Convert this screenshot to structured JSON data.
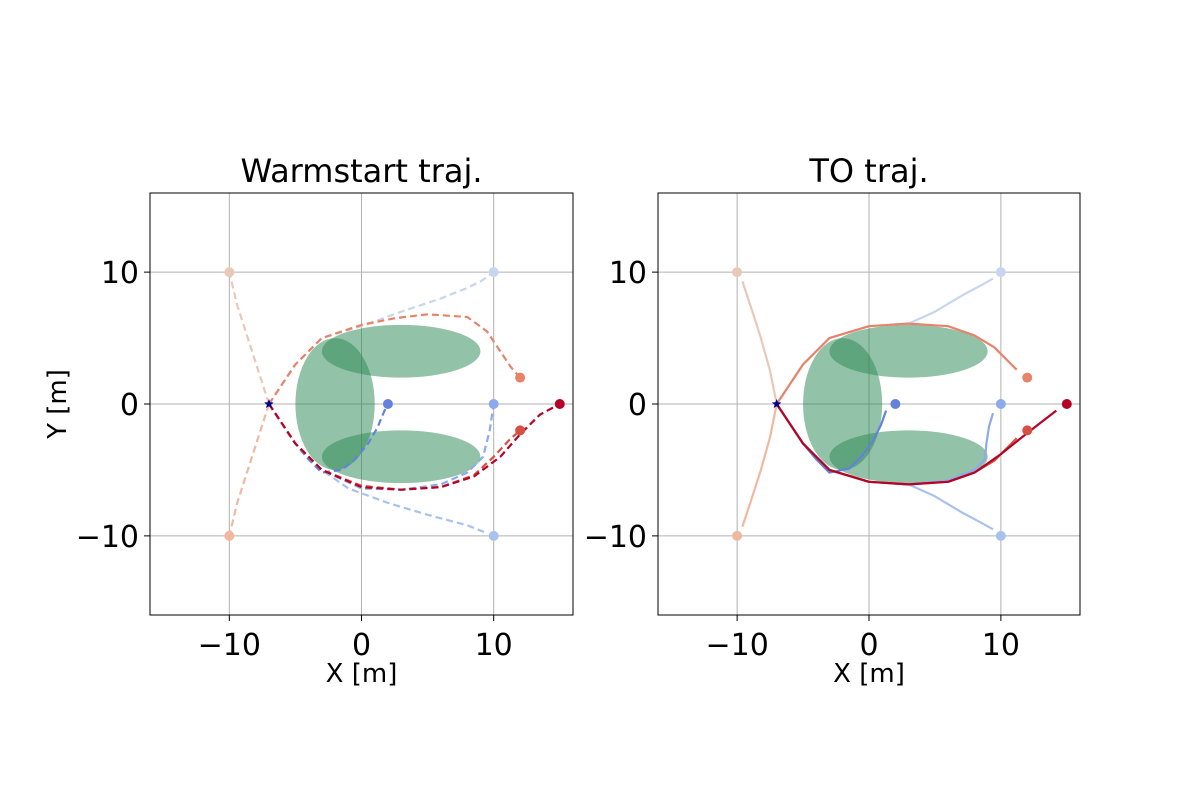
{
  "chart_data": [
    {
      "type": "line",
      "title": "Warmstart traj.",
      "xlabel": "X [m]",
      "ylabel": "Y [m]",
      "xlim": [
        -16,
        16
      ],
      "ylim": [
        -16,
        16
      ],
      "xticks": [
        -10,
        0,
        10
      ],
      "yticks": [
        -10,
        0,
        10
      ],
      "xtick_labels": [
        "−10",
        "0",
        "10"
      ],
      "ytick_labels": [
        "−10",
        "0",
        "10"
      ],
      "grid": true,
      "line_style": "dashed",
      "obstacles": [
        {
          "shape": "ellipse",
          "center": [
            3,
            4
          ],
          "rx": 6,
          "ry": 2,
          "color": "#2e8b57"
        },
        {
          "shape": "ellipse",
          "center": [
            3,
            -4
          ],
          "rx": 6,
          "ry": 2,
          "color": "#2e8b57"
        },
        {
          "shape": "ellipse",
          "center": [
            -2,
            0
          ],
          "rx": 3,
          "ry": 5,
          "color": "#2e8b57"
        }
      ],
      "start": {
        "x": -7,
        "y": 0,
        "color": "#00008b"
      },
      "series": [
        {
          "color": "#e8c8b8",
          "goal": [
            -10,
            10
          ],
          "x": [
            -7,
            -7.8,
            -8.6,
            -9.4,
            -10
          ],
          "y": [
            0,
            2.5,
            5,
            7.5,
            10
          ]
        },
        {
          "color": "#f0b8a0",
          "goal": [
            -10,
            -10
          ],
          "x": [
            -7,
            -7.8,
            -8.6,
            -9.4,
            -10
          ],
          "y": [
            0,
            -2.5,
            -5,
            -7.5,
            -10
          ]
        },
        {
          "color": "#c6d6ef",
          "goal": [
            10,
            10
          ],
          "x": [
            -7,
            -6,
            -5,
            -3,
            0,
            3,
            6,
            8,
            9,
            9.6,
            10
          ],
          "y": [
            0,
            1.5,
            3,
            5,
            5.9,
            7,
            8,
            8.8,
            9.3,
            9.7,
            10
          ]
        },
        {
          "color": "#a8c2ee",
          "goal": [
            10,
            -10
          ],
          "x": [
            -7,
            -6,
            -5,
            -3,
            -1,
            2,
            5,
            8,
            9.5
          ],
          "y": [
            0,
            -1.5,
            -3,
            -5,
            -6.4,
            -7.5,
            -8.4,
            -9.2,
            -9.8
          ]
        },
        {
          "color": "#8caaec",
          "goal": [
            10,
            0
          ],
          "x": [
            -7,
            -6,
            -5,
            -3,
            0,
            3,
            6,
            8,
            9.2,
            9.7,
            10
          ],
          "y": [
            0,
            -1.5,
            -3,
            -5,
            -6.4,
            -6.5,
            -6.1,
            -5.2,
            -4,
            -2,
            0
          ]
        },
        {
          "color": "#6482dc",
          "goal": [
            2,
            0
          ],
          "x": [
            -7,
            -6,
            -5,
            -4,
            -3,
            -1.5,
            -0.5,
            0.5,
            1.2,
            1.7,
            2
          ],
          "y": [
            0,
            -1.5,
            -3,
            -4.2,
            -5.2,
            -5,
            -4.2,
            -3,
            -1.8,
            -0.6,
            0
          ]
        },
        {
          "color": "#e8836a",
          "goal": [
            12,
            2
          ],
          "x": [
            -7,
            -6,
            -5,
            -3,
            0,
            2.5,
            5,
            8,
            9.5,
            10.5,
            11.3,
            12
          ],
          "y": [
            0,
            1.5,
            3,
            5,
            6,
            6.5,
            6.8,
            6.6,
            5.5,
            4,
            2.8,
            2
          ]
        },
        {
          "color": "#d64f42",
          "goal": [
            12,
            -2
          ],
          "x": [
            -7,
            -6,
            -5,
            -3,
            0,
            3,
            6,
            8.5,
            10,
            11.2,
            12
          ],
          "y": [
            0,
            -1.5,
            -3,
            -5,
            -6.2,
            -6.5,
            -6.3,
            -5.4,
            -4,
            -2.7,
            -2
          ]
        },
        {
          "color": "#b40426",
          "goal": [
            15,
            0
          ],
          "x": [
            -7,
            -6,
            -5,
            -3,
            0,
            3,
            6,
            8.5,
            10.5,
            12,
            13.5,
            15
          ],
          "y": [
            0,
            -1.5,
            -3,
            -5,
            -6.3,
            -6.5,
            -6.3,
            -5.5,
            -4,
            -2.3,
            -0.8,
            0
          ]
        }
      ]
    },
    {
      "type": "line",
      "title": "TO traj.",
      "xlabel": "X [m]",
      "ylabel": "",
      "xlim": [
        -16,
        16
      ],
      "ylim": [
        -16,
        16
      ],
      "xticks": [
        -10,
        0,
        10
      ],
      "yticks": [
        -10,
        0,
        10
      ],
      "xtick_labels": [
        "−10",
        "0",
        "10"
      ],
      "ytick_labels": [
        "−10",
        "0",
        "10"
      ],
      "grid": true,
      "line_style": "solid",
      "obstacles": [
        {
          "shape": "ellipse",
          "center": [
            3,
            4
          ],
          "rx": 6,
          "ry": 2,
          "color": "#2e8b57"
        },
        {
          "shape": "ellipse",
          "center": [
            3,
            -4
          ],
          "rx": 6,
          "ry": 2,
          "color": "#2e8b57"
        },
        {
          "shape": "ellipse",
          "center": [
            -2,
            0
          ],
          "rx": 3,
          "ry": 5,
          "color": "#2e8b57"
        }
      ],
      "start": {
        "x": -7,
        "y": 0,
        "color": "#00008b"
      },
      "series": [
        {
          "color": "#e8c8b8",
          "goal": [
            -10,
            10
          ],
          "x": [
            -7,
            -7.5,
            -8.2,
            -9,
            -9.6
          ],
          "y": [
            0,
            2.5,
            5,
            7.5,
            9.3
          ]
        },
        {
          "color": "#f0b8a0",
          "goal": [
            -10,
            -10
          ],
          "x": [
            -7,
            -7.5,
            -8.2,
            -9,
            -9.6
          ],
          "y": [
            0,
            -2.5,
            -5,
            -7.5,
            -9.3
          ]
        },
        {
          "color": "#c6d6ef",
          "goal": [
            10,
            10
          ],
          "x": [
            -7,
            -6,
            -5,
            -3,
            0,
            3,
            5,
            7,
            8.5,
            9.4
          ],
          "y": [
            0,
            1.5,
            3,
            5,
            5.9,
            6.1,
            7,
            8.2,
            9,
            9.5
          ]
        },
        {
          "color": "#a8c2ee",
          "goal": [
            10,
            -10
          ],
          "x": [
            -7,
            -6,
            -5,
            -3,
            0,
            3,
            5,
            7,
            8.5,
            9.4
          ],
          "y": [
            0,
            -1.5,
            -3,
            -5,
            -5.9,
            -6.1,
            -7,
            -8.2,
            -9,
            -9.5
          ]
        },
        {
          "color": "#8caaec",
          "goal": [
            10,
            0
          ],
          "x": [
            -7,
            -6,
            -5,
            -3,
            0,
            3,
            6,
            8,
            8.8,
            8.9,
            9.1,
            9.4
          ],
          "y": [
            0,
            -1.5,
            -3,
            -5,
            -5.9,
            -6.1,
            -5.8,
            -5,
            -4.2,
            -3,
            -1.7,
            -0.7
          ]
        },
        {
          "color": "#6482dc",
          "goal": [
            2,
            0
          ],
          "x": [
            -7,
            -6,
            -5,
            -4,
            -3,
            -1.5,
            -0.5,
            0.3,
            0.9,
            1.3
          ],
          "y": [
            0,
            -1.5,
            -3,
            -4.2,
            -5.2,
            -4.9,
            -3.9,
            -2.8,
            -1.6,
            -0.5
          ]
        },
        {
          "color": "#e8836a",
          "goal": [
            12,
            2
          ],
          "x": [
            -7,
            -6,
            -5,
            -3,
            0,
            3,
            6,
            8,
            9.5,
            10.5,
            11.2
          ],
          "y": [
            0,
            1.5,
            3,
            5,
            5.9,
            6.1,
            5.9,
            5.2,
            4.3,
            3.3,
            2.6
          ]
        },
        {
          "color": "#d64f42",
          "goal": [
            12,
            -2
          ],
          "x": [
            -7,
            -6,
            -5,
            -3,
            0,
            3,
            6,
            8,
            9.5,
            10.5,
            11.2
          ],
          "y": [
            0,
            -1.5,
            -3,
            -5,
            -5.9,
            -6.1,
            -5.9,
            -5.2,
            -4.3,
            -3.3,
            -2.6
          ]
        },
        {
          "color": "#b40426",
          "goal": [
            15,
            0
          ],
          "x": [
            -7,
            -6,
            -5,
            -3,
            0,
            3,
            6,
            8,
            10,
            12,
            14.2
          ],
          "y": [
            0,
            -1.5,
            -3,
            -5,
            -5.9,
            -6.1,
            -5.9,
            -5.2,
            -3.8,
            -2.2,
            -0.5
          ]
        }
      ]
    }
  ]
}
